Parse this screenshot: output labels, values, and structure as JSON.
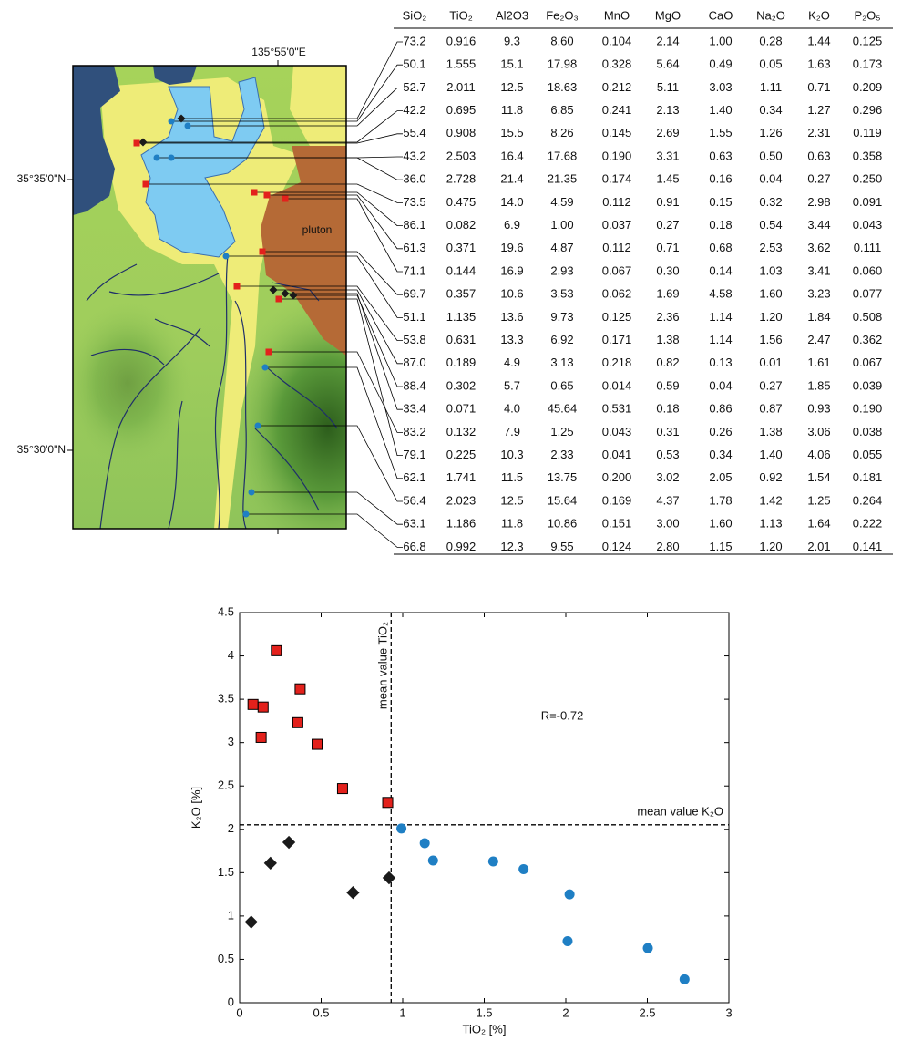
{
  "map": {
    "longitude_label": "135°55'0\"E",
    "latitude_labels": [
      "35°35'0\"N",
      "35°30'0\"N"
    ],
    "pluton_label": "pluton"
  },
  "table": {
    "header": [
      "SiO₂",
      "TiO₂",
      "Al2O3",
      "Fe₂O₃",
      "MnO",
      "MgO",
      "CaO",
      "Na₂O",
      "K₂O",
      "P₂O₅"
    ],
    "rows": [
      [
        "73.2",
        "0.916",
        "9.3",
        "8.60",
        "0.104",
        "2.14",
        "1.00",
        "0.28",
        "1.44",
        "0.125"
      ],
      [
        "50.1",
        "1.555",
        "15.1",
        "17.98",
        "0.328",
        "5.64",
        "0.49",
        "0.05",
        "1.63",
        "0.173"
      ],
      [
        "52.7",
        "2.011",
        "12.5",
        "18.63",
        "0.212",
        "5.11",
        "3.03",
        "1.11",
        "0.71",
        "0.209"
      ],
      [
        "42.2",
        "0.695",
        "11.8",
        "6.85",
        "0.241",
        "2.13",
        "1.40",
        "0.34",
        "1.27",
        "0.296"
      ],
      [
        "55.4",
        "0.908",
        "15.5",
        "8.26",
        "0.145",
        "2.69",
        "1.55",
        "1.26",
        "2.31",
        "0.119"
      ],
      [
        "43.2",
        "2.503",
        "16.4",
        "17.68",
        "0.190",
        "3.31",
        "0.63",
        "0.50",
        "0.63",
        "0.358"
      ],
      [
        "36.0",
        "2.728",
        "21.4",
        "21.35",
        "0.174",
        "1.45",
        "0.16",
        "0.04",
        "0.27",
        "0.250"
      ],
      [
        "73.5",
        "0.475",
        "14.0",
        "4.59",
        "0.112",
        "0.91",
        "0.15",
        "0.32",
        "2.98",
        "0.091"
      ],
      [
        "86.1",
        "0.082",
        "6.9",
        "1.00",
        "0.037",
        "0.27",
        "0.18",
        "0.54",
        "3.44",
        "0.043"
      ],
      [
        "61.3",
        "0.371",
        "19.6",
        "4.87",
        "0.112",
        "0.71",
        "0.68",
        "2.53",
        "3.62",
        "0.111"
      ],
      [
        "71.1",
        "0.144",
        "16.9",
        "2.93",
        "0.067",
        "0.30",
        "0.14",
        "1.03",
        "3.41",
        "0.060"
      ],
      [
        "69.7",
        "0.357",
        "10.6",
        "3.53",
        "0.062",
        "1.69",
        "4.58",
        "1.60",
        "3.23",
        "0.077"
      ],
      [
        "51.1",
        "1.135",
        "13.6",
        "9.73",
        "0.125",
        "2.36",
        "1.14",
        "1.20",
        "1.84",
        "0.508"
      ],
      [
        "53.8",
        "0.631",
        "13.3",
        "6.92",
        "0.171",
        "1.38",
        "1.14",
        "1.56",
        "2.47",
        "0.362"
      ],
      [
        "87.0",
        "0.189",
        "4.9",
        "3.13",
        "0.218",
        "0.82",
        "0.13",
        "0.01",
        "1.61",
        "0.067"
      ],
      [
        "88.4",
        "0.302",
        "5.7",
        "0.65",
        "0.014",
        "0.59",
        "0.04",
        "0.27",
        "1.85",
        "0.039"
      ],
      [
        "33.4",
        "0.071",
        "4.0",
        "45.64",
        "0.531",
        "0.18",
        "0.86",
        "0.87",
        "0.93",
        "0.190"
      ],
      [
        "83.2",
        "0.132",
        "7.9",
        "1.25",
        "0.043",
        "0.31",
        "0.26",
        "1.38",
        "3.06",
        "0.038"
      ],
      [
        "79.1",
        "0.225",
        "10.3",
        "2.33",
        "0.041",
        "0.53",
        "0.34",
        "1.40",
        "4.06",
        "0.055"
      ],
      [
        "62.1",
        "1.741",
        "11.5",
        "13.75",
        "0.200",
        "3.02",
        "2.05",
        "0.92",
        "1.54",
        "0.181"
      ],
      [
        "56.4",
        "2.023",
        "12.5",
        "15.64",
        "0.169",
        "4.37",
        "1.78",
        "1.42",
        "1.25",
        "0.264"
      ],
      [
        "63.1",
        "1.186",
        "11.8",
        "10.86",
        "0.151",
        "3.00",
        "1.60",
        "1.13",
        "1.64",
        "0.222"
      ],
      [
        "66.8",
        "0.992",
        "12.3",
        "9.55",
        "0.124",
        "2.80",
        "1.15",
        "1.20",
        "2.01",
        "0.141"
      ]
    ]
  },
  "chart_data": {
    "type": "scatter",
    "x_label": "TiO₂ [%]",
    "y_label": "K₂O [%]",
    "xlim": [
      0,
      3
    ],
    "ylim": [
      0,
      4.5
    ],
    "xticks": [
      0,
      0.5,
      1,
      1.5,
      2,
      2.5,
      3
    ],
    "yticks": [
      0,
      0.5,
      1,
      1.5,
      2,
      2.5,
      3,
      3.5,
      4,
      4.5
    ],
    "series": [
      {
        "color": "#e3211c",
        "marker": "square",
        "x": [
          0.908,
          0.475,
          0.082,
          0.371,
          0.144,
          0.357,
          0.631,
          0.132,
          0.225
        ],
        "values": [
          2.31,
          2.98,
          3.44,
          3.62,
          3.41,
          3.23,
          2.47,
          3.06,
          4.06
        ]
      },
      {
        "color": "#1a1a1a",
        "marker": "diamond",
        "x": [
          0.916,
          0.695,
          0.189,
          0.302,
          0.071
        ],
        "values": [
          1.44,
          1.27,
          1.61,
          1.85,
          0.93
        ]
      },
      {
        "color": "#1f7fc4",
        "marker": "circle",
        "x": [
          1.555,
          2.011,
          2.503,
          2.728,
          1.135,
          1.741,
          2.023,
          1.186,
          0.992
        ],
        "values": [
          1.63,
          0.71,
          0.63,
          0.27,
          1.84,
          1.54,
          1.25,
          1.64,
          2.01
        ]
      }
    ],
    "reference_lines": [
      {
        "axis": "x",
        "value": 0.929,
        "label": "mean value TiO₂",
        "color": "#3333dd"
      },
      {
        "axis": "y",
        "value": 2.052,
        "label": "mean value K₂O",
        "color": "#3333dd"
      }
    ],
    "annotation": "R=-0.72"
  }
}
